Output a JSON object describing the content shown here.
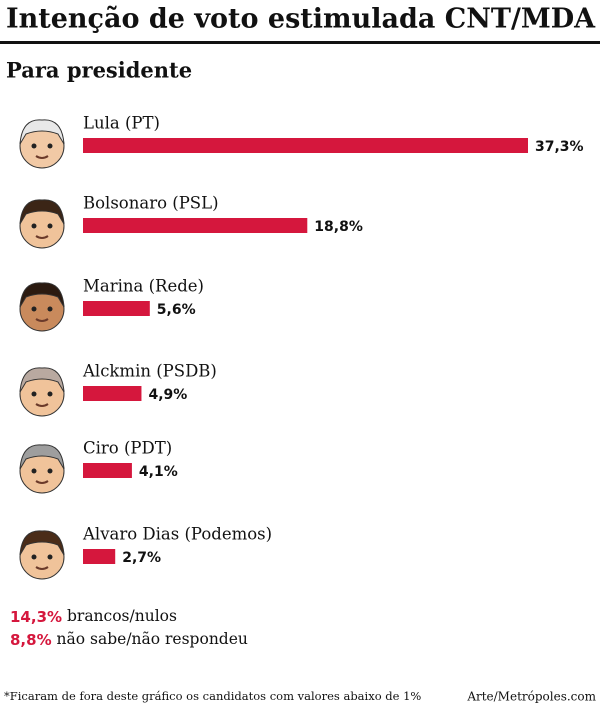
{
  "chart_data": {
    "type": "bar",
    "orientation": "horizontal",
    "title": "Intenção de voto estimulada CNT/MDA",
    "subtitle": "Para presidente",
    "categories": [
      "Lula (PT)",
      "Bolsonaro (PSL)",
      "Marina (Rede)",
      "Alckmin (PSDB)",
      "Ciro (PDT)",
      "Alvaro Dias (Podemos)"
    ],
    "values": [
      37.3,
      18.8,
      5.6,
      4.9,
      4.1,
      2.7
    ],
    "value_labels": [
      "37,3%",
      "18,8%",
      "5,6%",
      "4,9%",
      "4,1%",
      "2,7%"
    ],
    "color": "#d5173d",
    "others": [
      {
        "value": 14.3,
        "label": "14,3%",
        "text": "brancos/nulos"
      },
      {
        "value": 8.8,
        "label": "8,8%",
        "text": "não sabe/não respondeu"
      }
    ],
    "footnote": "*Ficaram de fora deste gráfico os candidatos com valores abaixo de 1%",
    "credit": "Arte/Metrópoles.com"
  }
}
